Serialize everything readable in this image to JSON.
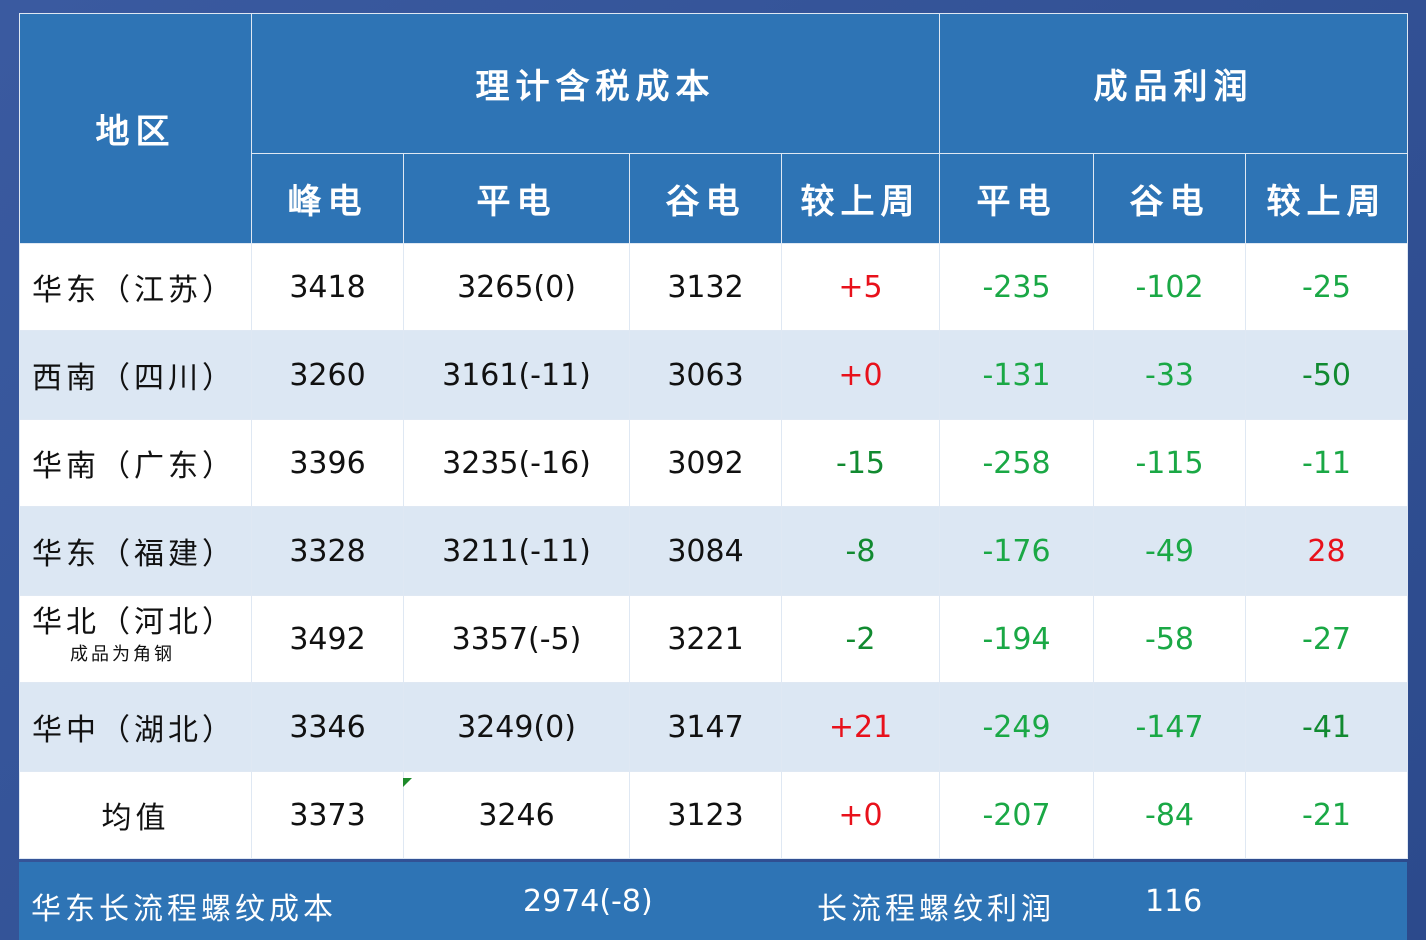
{
  "header": {
    "region": "地区",
    "cost_group": "理计含税成本",
    "profit_group": "成品利润",
    "cost_cols": [
      "峰电",
      "平电",
      "谷电",
      "较上周"
    ],
    "profit_cols": [
      "平电",
      "谷电",
      "较上周"
    ]
  },
  "rows": [
    {
      "region": "华东（江苏）",
      "note": "",
      "peak": "3418",
      "flat": "3265(0)",
      "valley": "3132",
      "wow": "+5",
      "wow_color": "red",
      "p_flat": "-235",
      "p_valley": "-102",
      "p_wow": "-25",
      "p_wow_color": "green"
    },
    {
      "region": "西南（四川）",
      "note": "",
      "peak": "3260",
      "flat": "3161(-11)",
      "valley": "3063",
      "wow": "+0",
      "wow_color": "red",
      "p_flat": "-131",
      "p_valley": "-33",
      "p_wow": "-50",
      "p_wow_color": "darkgreen"
    },
    {
      "region": "华南（广东）",
      "note": "",
      "peak": "3396",
      "flat": "3235(-16)",
      "valley": "3092",
      "wow": "-15",
      "wow_color": "darkgreen",
      "p_flat": "-258",
      "p_valley": "-115",
      "p_wow": "-11",
      "p_wow_color": "green"
    },
    {
      "region": "华东（福建）",
      "note": "",
      "peak": "3328",
      "flat": "3211(-11)",
      "valley": "3084",
      "wow": "-8",
      "wow_color": "darkgreen",
      "p_flat": "-176",
      "p_valley": "-49",
      "p_wow": "28",
      "p_wow_color": "red"
    },
    {
      "region": "华北（河北）",
      "note": "成品为角钢",
      "peak": "3492",
      "flat": "3357(-5)",
      "valley": "3221",
      "wow": "-2",
      "wow_color": "darkgreen",
      "p_flat": "-194",
      "p_valley": "-58",
      "p_wow": "-27",
      "p_wow_color": "green"
    },
    {
      "region": "华中（湖北）",
      "note": "",
      "peak": "3346",
      "flat": "3249(0)",
      "valley": "3147",
      "wow": "+21",
      "wow_color": "red",
      "p_flat": "-249",
      "p_valley": "-147",
      "p_wow": "-41",
      "p_wow_color": "darkgreen"
    },
    {
      "region": "均值",
      "note": "",
      "peak": "3373",
      "flat": "3246",
      "valley": "3123",
      "wow": "+0",
      "wow_color": "red",
      "p_flat": "-207",
      "p_valley": "-84",
      "p_wow": "-21",
      "p_wow_color": "green"
    }
  ],
  "footer": {
    "cost_label": "华东长流程螺纹成本",
    "cost_value": "2974(-8)",
    "profit_label": "长流程螺纹利润",
    "profit_value": "116"
  }
}
